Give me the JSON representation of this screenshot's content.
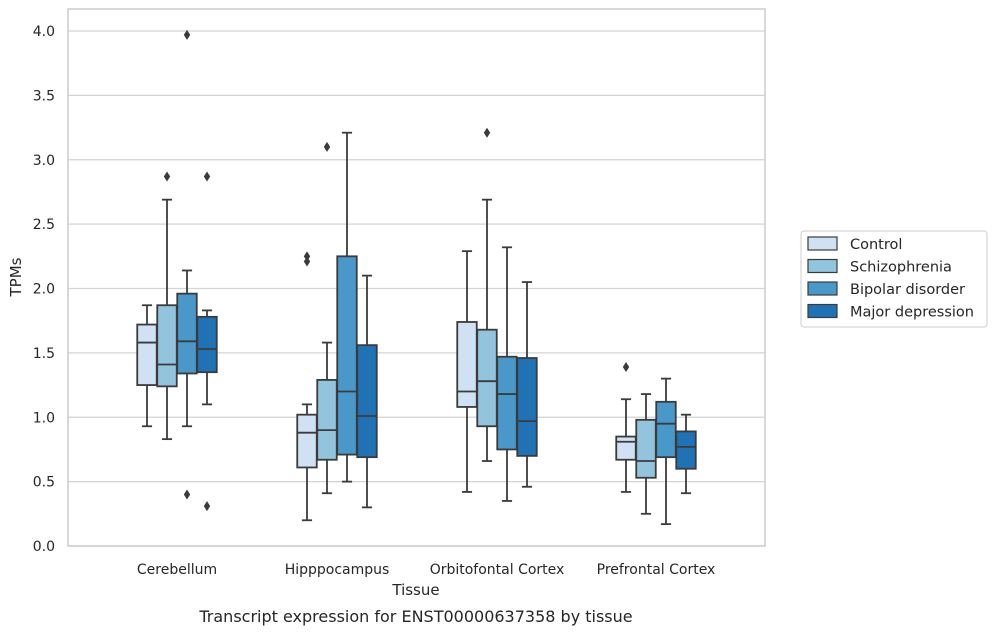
{
  "caption": "Transcript expression for ENST00000637358 by tissue",
  "chart_data": {
    "type": "boxplot",
    "xlabel": "Tissue",
    "ylabel": "TPMs",
    "ylim": [
      0,
      4.15
    ],
    "yticks": [
      "0.0",
      "0.5",
      "1.0",
      "1.5",
      "2.0",
      "2.5",
      "3.0",
      "3.5",
      "4.0"
    ],
    "grid": "horizontal",
    "legend_position": "right",
    "categories": [
      "Cerebellum",
      "Hipppocampus",
      "Orbitofontal Cortex",
      "Prefrontal Cortex"
    ],
    "series": [
      {
        "name": "Control",
        "color": "#cfe1f2",
        "boxes": [
          {
            "whisker_low": 0.93,
            "q1": 1.25,
            "median": 1.58,
            "q3": 1.72,
            "whisker_high": 1.87,
            "outliers": []
          },
          {
            "whisker_low": 0.2,
            "q1": 0.61,
            "median": 0.88,
            "q3": 1.02,
            "whisker_high": 1.1,
            "outliers": [
              2.21,
              2.25
            ]
          },
          {
            "whisker_low": 0.42,
            "q1": 1.08,
            "median": 1.2,
            "q3": 1.74,
            "whisker_high": 2.29,
            "outliers": []
          },
          {
            "whisker_low": 0.42,
            "q1": 0.67,
            "median": 0.81,
            "q3": 0.85,
            "whisker_high": 1.14,
            "outliers": [
              1.39
            ]
          }
        ]
      },
      {
        "name": "Schizophrenia",
        "color": "#93c4de",
        "boxes": [
          {
            "whisker_low": 0.83,
            "q1": 1.24,
            "median": 1.41,
            "q3": 1.87,
            "whisker_high": 2.69,
            "outliers": [
              2.87
            ]
          },
          {
            "whisker_low": 0.41,
            "q1": 0.67,
            "median": 0.9,
            "q3": 1.29,
            "whisker_high": 1.58,
            "outliers": [
              3.1
            ]
          },
          {
            "whisker_low": 0.66,
            "q1": 0.93,
            "median": 1.28,
            "q3": 1.68,
            "whisker_high": 2.69,
            "outliers": [
              3.21
            ]
          },
          {
            "whisker_low": 0.25,
            "q1": 0.53,
            "median": 0.66,
            "q3": 0.98,
            "whisker_high": 1.18,
            "outliers": []
          }
        ]
      },
      {
        "name": "Bipolar disorder",
        "color": "#4a98c9",
        "boxes": [
          {
            "whisker_low": 0.93,
            "q1": 1.34,
            "median": 1.59,
            "q3": 1.96,
            "whisker_high": 2.14,
            "outliers": [
              0.4,
              3.97
            ]
          },
          {
            "whisker_low": 0.5,
            "q1": 0.71,
            "median": 1.2,
            "q3": 2.25,
            "whisker_high": 3.21,
            "outliers": []
          },
          {
            "whisker_low": 0.35,
            "q1": 0.75,
            "median": 1.18,
            "q3": 1.47,
            "whisker_high": 2.32,
            "outliers": []
          },
          {
            "whisker_low": 0.17,
            "q1": 0.69,
            "median": 0.95,
            "q3": 1.12,
            "whisker_high": 1.3,
            "outliers": []
          }
        ]
      },
      {
        "name": "Major depression",
        "color": "#2171b5",
        "boxes": [
          {
            "whisker_low": 1.1,
            "q1": 1.35,
            "median": 1.53,
            "q3": 1.78,
            "whisker_high": 1.83,
            "outliers": [
              0.31,
              2.87
            ]
          },
          {
            "whisker_low": 0.3,
            "q1": 0.69,
            "median": 1.01,
            "q3": 1.56,
            "whisker_high": 2.1,
            "outliers": []
          },
          {
            "whisker_low": 0.46,
            "q1": 0.7,
            "median": 0.97,
            "q3": 1.46,
            "whisker_high": 2.05,
            "outliers": []
          },
          {
            "whisker_low": 0.41,
            "q1": 0.6,
            "median": 0.77,
            "q3": 0.89,
            "whisker_high": 1.02,
            "outliers": []
          }
        ]
      }
    ]
  }
}
